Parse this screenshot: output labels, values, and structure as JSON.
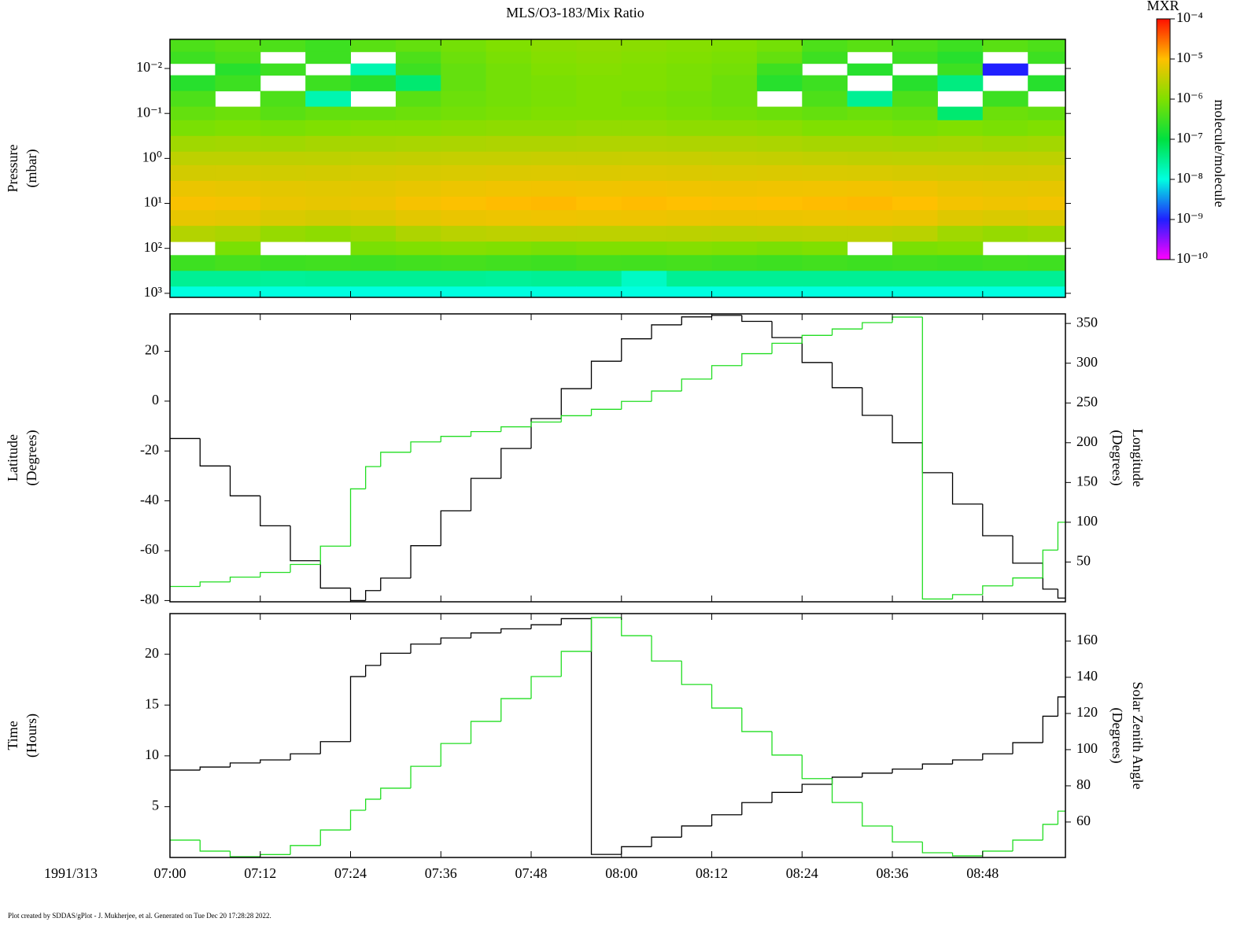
{
  "footer": "Plot created by SDDAS/gPlot - J. Mukherjee, et al.  Generated on Tue Dec 20 17:28:28 2022.",
  "chart_data": [
    {
      "type": "heatmap",
      "title": "MLS/O3-183/Mix Ratio",
      "ylabel": [
        "Pressure",
        "(mbar)"
      ],
      "xlim": [
        "07:00",
        "08:59"
      ],
      "xticks": [
        "07:00",
        "07:12",
        "07:24",
        "07:36",
        "07:48",
        "08:00",
        "08:12",
        "08:24",
        "08:36",
        "08:48"
      ],
      "ylim": [
        1230,
        0.00225
      ],
      "log_y": true,
      "yticks": [
        {
          "value": 0.01,
          "label": "10⁻²"
        },
        {
          "value": 0.1,
          "label": "10⁻¹"
        },
        {
          "value": 1,
          "label": "10⁰"
        },
        {
          "value": 10,
          "label": "10¹"
        },
        {
          "value": 100,
          "label": "10²"
        },
        {
          "value": 1000,
          "label": "10³"
        }
      ],
      "x": [
        "07:00",
        "07:06",
        "07:12",
        "07:18",
        "07:24",
        "07:30",
        "07:36",
        "07:42",
        "07:48",
        "07:54",
        "08:00",
        "08:06",
        "08:12",
        "08:18",
        "08:24",
        "08:30",
        "08:36",
        "08:42",
        "08:48",
        "08:54"
      ],
      "y": [
        0.003,
        0.006,
        0.01,
        0.02,
        0.05,
        0.1,
        0.2,
        0.5,
        1,
        2,
        5,
        10,
        20,
        50,
        100,
        200,
        500,
        1000
      ],
      "z": [
        [
          4e-07,
          5e-07,
          4e-07,
          3e-07,
          5e-07,
          6e-07,
          8e-07,
          1e-06,
          1.2e-06,
          1.3e-06,
          1.2e-06,
          1.1e-06,
          1e-06,
          8e-07,
          4e-07,
          5e-07,
          4e-07,
          3e-07,
          5e-07,
          4e-07
        ],
        [
          3e-07,
          4e-07,
          null,
          3e-07,
          null,
          4e-07,
          7e-07,
          9e-07,
          1.1e-06,
          1.2e-06,
          1.1e-06,
          1e-06,
          9e-07,
          6e-07,
          3e-07,
          null,
          3e-07,
          2e-07,
          null,
          3e-07
        ],
        [
          null,
          2e-07,
          3e-07,
          null,
          2e-08,
          3e-07,
          6e-07,
          8e-07,
          1e-06,
          1.1e-06,
          1e-06,
          9e-07,
          8e-07,
          3e-07,
          null,
          2e-07,
          null,
          3e-07,
          1e-09,
          null
        ],
        [
          2e-07,
          3e-07,
          null,
          3e-07,
          2e-07,
          5e-08,
          6e-07,
          8e-07,
          9e-07,
          1e-06,
          1e-06,
          9e-07,
          7e-07,
          2e-07,
          3e-07,
          null,
          2e-07,
          4e-08,
          null,
          2e-07
        ],
        [
          4e-07,
          null,
          4e-07,
          2e-08,
          null,
          5e-07,
          7e-07,
          8e-07,
          9e-07,
          1e-06,
          9e-07,
          8e-07,
          7e-07,
          null,
          4e-07,
          3e-08,
          4e-07,
          null,
          3e-07,
          null
        ],
        [
          6e-07,
          7e-07,
          5e-07,
          6e-07,
          6e-07,
          7e-07,
          8e-07,
          9e-07,
          1e-06,
          1e-06,
          1e-06,
          9e-07,
          8e-07,
          7e-07,
          6e-07,
          7e-07,
          6e-07,
          5e-08,
          7e-07,
          6e-07
        ],
        [
          9e-07,
          1e-06,
          9e-07,
          1e-06,
          1.1e-06,
          1.1e-06,
          1.2e-06,
          1.3e-06,
          1.3e-06,
          1.4e-06,
          1.4e-06,
          1.3e-06,
          1.3e-06,
          1.2e-06,
          1e-06,
          1e-06,
          9e-07,
          1e-06,
          9e-07,
          1e-06
        ],
        [
          1.8e-06,
          1.9e-06,
          1.8e-06,
          2e-06,
          2e-06,
          2.1e-06,
          2.2e-06,
          2.3e-06,
          2.3e-06,
          2.4e-06,
          2.4e-06,
          2.3e-06,
          2.3e-06,
          2.2e-06,
          2e-06,
          2e-06,
          1.9e-06,
          2e-06,
          1.8e-06,
          1.9e-06
        ],
        [
          3e-06,
          3e-06,
          3.1e-06,
          3e-06,
          3.2e-06,
          3.3e-06,
          3.5e-06,
          3.5e-06,
          3.6e-06,
          3.6e-06,
          3.7e-06,
          3.6e-06,
          3.5e-06,
          3.4e-06,
          3.2e-06,
          3.1e-06,
          3e-06,
          3e-06,
          3.1e-06,
          3e-06
        ],
        [
          4.4e-06,
          4.5e-06,
          4.3e-06,
          4.4e-06,
          4.6e-06,
          4.8e-06,
          5e-06,
          5.2e-06,
          5.3e-06,
          5.2e-06,
          5.3e-06,
          5.1e-06,
          5e-06,
          5.1e-06,
          5e-06,
          4.9e-06,
          4.7e-06,
          4.5e-06,
          4.4e-06,
          4.5e-06
        ],
        [
          6.8e-06,
          6.5e-06,
          6e-06,
          5.8e-06,
          6e-06,
          6.6e-06,
          7.2e-06,
          7.6e-06,
          7.8e-06,
          7.6e-06,
          7.8e-06,
          7.5e-06,
          7.4e-06,
          7.6e-06,
          7.7e-06,
          7.9e-06,
          7.5e-06,
          6.5e-06,
          6.2e-06,
          6.4e-06
        ],
        [
          9e-06,
          8.5e-06,
          7e-06,
          6.5e-06,
          7e-06,
          8.5e-06,
          9.5e-06,
          1.05e-05,
          1.1e-05,
          1e-05,
          1.05e-05,
          1e-05,
          9.5e-06,
          1e-05,
          1.05e-05,
          1.1e-05,
          1e-05,
          8e-06,
          7.5e-06,
          8e-06
        ],
        [
          6.5e-06,
          6e-06,
          5e-06,
          4.5e-06,
          5e-06,
          6e-06,
          6.8e-06,
          7.2e-06,
          7.5e-06,
          7.2e-06,
          7.4e-06,
          7e-06,
          6.8e-06,
          7e-06,
          7.2e-06,
          7.4e-06,
          7e-06,
          5.5e-06,
          5e-06,
          5.5e-06
        ],
        [
          2.5e-06,
          2.2e-06,
          1.5e-06,
          1.3e-06,
          1.6e-06,
          2.3e-06,
          2.8e-06,
          3e-06,
          3.1e-06,
          3e-06,
          3e-06,
          2.9e-06,
          2.8e-06,
          2.9e-06,
          3e-06,
          3e-06,
          2.8e-06,
          1.8e-06,
          1.5e-06,
          1.7e-06
        ],
        [
          null,
          9e-07,
          null,
          null,
          9e-07,
          1e-06,
          1.1e-06,
          1e-06,
          9e-07,
          1e-06,
          1e-06,
          1.1e-06,
          1e-06,
          9e-07,
          1e-06,
          null,
          9e-07,
          1e-06,
          null,
          null
        ],
        [
          3e-07,
          3.5e-07,
          3e-07,
          3.2e-07,
          3e-07,
          3.3e-07,
          3.5e-07,
          3.2e-07,
          3e-07,
          3.4e-07,
          3.3e-07,
          3.5e-07,
          3.2e-07,
          3e-07,
          3.3e-07,
          3e-07,
          3.2e-07,
          3e-07,
          3.3e-07,
          3.1e-07
        ],
        [
          3e-08,
          3e-08,
          2.8e-08,
          3e-08,
          3e-08,
          3e-08,
          3e-08,
          2.8e-08,
          3e-08,
          3e-08,
          1.5e-08,
          3e-08,
          3e-08,
          3e-08,
          3e-08,
          3e-08,
          3e-08,
          3e-08,
          3e-08,
          3e-08
        ],
        [
          1e-08,
          1e-08,
          1e-08,
          1e-08,
          1e-08,
          1e-08,
          1e-08,
          1e-08,
          1e-08,
          1e-08,
          1e-08,
          1e-08,
          1e-08,
          1e-08,
          1e-08,
          1e-08,
          1e-08,
          1e-08,
          1e-08,
          1e-08
        ]
      ],
      "colorbar": {
        "title": "MXR",
        "label": "molecule/molecule",
        "log": true,
        "lim": [
          1e-10,
          0.0001
        ],
        "ticks": [
          {
            "value": 0.0001,
            "label": "10⁻⁴"
          },
          {
            "value": 1e-05,
            "label": "10⁻⁵"
          },
          {
            "value": 1e-06,
            "label": "10⁻⁶"
          },
          {
            "value": 1e-07,
            "label": "10⁻⁷"
          },
          {
            "value": 1e-08,
            "label": "10⁻⁸"
          },
          {
            "value": 1e-09,
            "label": "10⁻⁹"
          },
          {
            "value": 1e-10,
            "label": "10⁻¹⁰"
          }
        ],
        "colors": [
          "#ff00ff",
          "#2020ff",
          "#00ffe0",
          "#00e040",
          "#80e000",
          "#ffc000",
          "#ff1000"
        ]
      }
    },
    {
      "type": "step",
      "ylabel": [
        "Latitude",
        "(Degrees)"
      ],
      "y2label": [
        "Longitude",
        "(Degrees)"
      ],
      "xlim": [
        "07:00",
        "08:59"
      ],
      "xticks": [
        "07:00",
        "07:12",
        "07:24",
        "07:36",
        "07:48",
        "08:00",
        "08:12",
        "08:24",
        "08:36",
        "08:48"
      ],
      "ylim": [
        -80.5,
        35
      ],
      "yticks": [
        -80,
        -60,
        -40,
        -20,
        0,
        20
      ],
      "y2lim": [
        0,
        362
      ],
      "y2ticks": [
        50,
        100,
        150,
        200,
        250,
        300,
        350
      ],
      "x": [
        "07:00",
        "07:04",
        "07:08",
        "07:12",
        "07:16",
        "07:20",
        "07:24",
        "07:26",
        "07:28",
        "07:32",
        "07:36",
        "07:40",
        "07:44",
        "07:48",
        "07:52",
        "07:56",
        "08:00",
        "08:04",
        "08:08",
        "08:12",
        "08:16",
        "08:20",
        "08:24",
        "08:28",
        "08:32",
        "08:36",
        "08:40",
        "08:44",
        "08:48",
        "08:52",
        "08:56",
        "08:58"
      ],
      "series": [
        {
          "color": "#000000",
          "values": [
            -15,
            -26,
            -38,
            -50,
            -64,
            -75,
            -80,
            -76,
            -71,
            -58,
            -44,
            -31,
            -19,
            -7,
            5,
            16,
            25,
            30.6,
            33.8,
            34.4,
            32,
            25.5,
            15.5,
            5.4,
            -5.7,
            -16.7,
            -28.7,
            -41.3,
            -54,
            -65,
            -75.4,
            -79
          ]
        },
        {
          "color": "#22dd22",
          "axis": "y2",
          "values": [
            19.3,
            25,
            31,
            37,
            47,
            70,
            142,
            170,
            188,
            201,
            208,
            214,
            220,
            226,
            234,
            242,
            252,
            265,
            280,
            297,
            312,
            325,
            335,
            343,
            351,
            358,
            3.5,
            9,
            20,
            30,
            65,
            100
          ]
        }
      ]
    },
    {
      "type": "step",
      "ylabel": [
        "Time",
        "(Hours)"
      ],
      "y2label": [
        "Solar Zenith Angle",
        "(Degrees)"
      ],
      "date_label": "1991/313",
      "xlim": [
        "07:00",
        "08:59"
      ],
      "xticks": [
        "07:00",
        "07:12",
        "07:24",
        "07:36",
        "07:48",
        "08:00",
        "08:12",
        "08:24",
        "08:36",
        "08:48"
      ],
      "ylim": [
        0,
        24
      ],
      "yticks": [
        5,
        10,
        15,
        20
      ],
      "y2lim": [
        40.4,
        175.2
      ],
      "y2ticks": [
        60,
        80,
        100,
        120,
        140,
        160
      ],
      "x": [
        "07:00",
        "07:04",
        "07:08",
        "07:12",
        "07:16",
        "07:20",
        "07:24",
        "07:26",
        "07:28",
        "07:32",
        "07:36",
        "07:40",
        "07:44",
        "07:48",
        "07:52",
        "07:56",
        "08:00",
        "08:04",
        "08:08",
        "08:12",
        "08:16",
        "08:20",
        "08:24",
        "08:28",
        "08:32",
        "08:36",
        "08:40",
        "08:44",
        "08:48",
        "08:52",
        "08:56",
        "08:58"
      ],
      "series": [
        {
          "color": "#000000",
          "values": [
            8.6,
            8.9,
            9.3,
            9.6,
            10.2,
            11.4,
            17.8,
            18.9,
            20.1,
            21,
            21.6,
            22.1,
            22.5,
            22.9,
            23.5,
            0.3,
            1.06,
            2,
            3.1,
            4.2,
            5.4,
            6.4,
            7.2,
            7.9,
            8.3,
            8.7,
            9.2,
            9.6,
            10.2,
            11.3,
            13.9,
            15.8
          ]
        },
        {
          "color": "#22dd22",
          "axis": "y2",
          "values": [
            50,
            43.9,
            40.8,
            42,
            47,
            55.6,
            66.5,
            72.6,
            78.7,
            90.8,
            103.4,
            115.6,
            128.2,
            140.4,
            154.3,
            173,
            163,
            149,
            136,
            123,
            110,
            97,
            84,
            70.8,
            57.8,
            49,
            43,
            41.3,
            43.9,
            50,
            58.7,
            66
          ]
        }
      ]
    }
  ]
}
